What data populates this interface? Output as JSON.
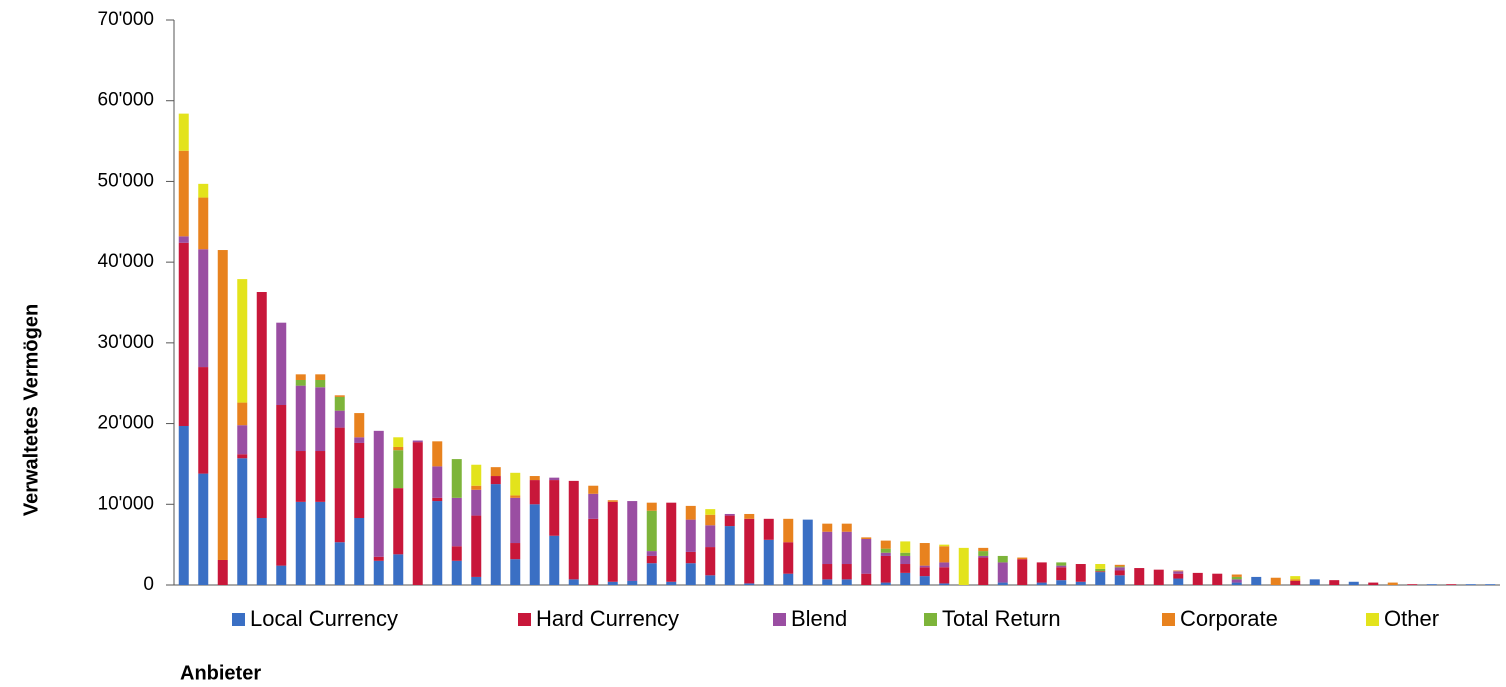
{
  "chart_data": {
    "type": "stacked_bar",
    "y_label": "Verwaltetes Vermögen",
    "x_label": "Anbieter",
    "categories": [
      null,
      null,
      null,
      null,
      null,
      null,
      null,
      null,
      null,
      null,
      null,
      null,
      null,
      null,
      null,
      null,
      null,
      null,
      null,
      null,
      null,
      null,
      null,
      null,
      null,
      null,
      null,
      null,
      null,
      null,
      null,
      null,
      null,
      null,
      null,
      null,
      null,
      null,
      null,
      null,
      null,
      null,
      null,
      null,
      null,
      null,
      null,
      null,
      null,
      null,
      null,
      null,
      null,
      null,
      null,
      null,
      null,
      null,
      null,
      null,
      null,
      null,
      null,
      null,
      null,
      null,
      null,
      null
    ],
    "ylim": [
      0,
      70000
    ],
    "yticks": [
      {
        "value": 0,
        "label": "0"
      },
      {
        "value": 10000,
        "label": "10'000"
      },
      {
        "value": 20000,
        "label": "20'000"
      },
      {
        "value": 30000,
        "label": "30'000"
      },
      {
        "value": 40000,
        "label": "40'000"
      },
      {
        "value": 50000,
        "label": "50'000"
      },
      {
        "value": 60000,
        "label": "60'000"
      },
      {
        "value": 70000,
        "label": "70'000"
      }
    ],
    "legend_position": "bottom",
    "series": [
      {
        "name": "Local Currency",
        "color": "#3a6fc4",
        "values": [
          19700,
          13800,
          0,
          15700,
          8300,
          2400,
          10300,
          10300,
          5300,
          8300,
          3000,
          3800,
          0,
          10400,
          3000,
          1000,
          12500,
          3200,
          10000,
          6100,
          700,
          0,
          400,
          500,
          2700,
          400,
          2700,
          1200,
          7300,
          200,
          5600,
          1400,
          8100,
          700,
          700,
          0,
          300,
          1500,
          1100,
          200,
          0,
          0,
          300,
          0,
          300,
          600,
          400,
          1600,
          1200,
          0,
          0,
          800,
          0,
          0,
          300,
          1000,
          0,
          0,
          700,
          0,
          400,
          0,
          0,
          0,
          100,
          0,
          100,
          100
        ]
      },
      {
        "name": "Hard Currency",
        "color": "#c8173a",
        "values": [
          22700,
          13200,
          3100,
          500,
          28000,
          19900,
          6300,
          6300,
          14200,
          9300,
          500,
          8200,
          17700,
          400,
          1800,
          7600,
          1000,
          2000,
          3000,
          6900,
          12200,
          8200,
          9900,
          0,
          900,
          9800,
          1400,
          3500,
          1300,
          8000,
          2600,
          3900,
          0,
          1900,
          1900,
          1400,
          3300,
          1100,
          1100,
          2000,
          0,
          3400,
          0,
          3200,
          2500,
          1600,
          2200,
          100,
          600,
          2100,
          1900,
          600,
          1500,
          1400,
          0,
          0,
          0,
          500,
          0,
          600,
          0,
          300,
          0,
          100,
          0,
          100,
          0,
          0
        ]
      },
      {
        "name": "Blend",
        "color": "#9a4ea2",
        "values": [
          800,
          14600,
          0,
          3600,
          0,
          10200,
          8100,
          7900,
          2100,
          700,
          15600,
          0,
          200,
          3900,
          6000,
          3200,
          0,
          5600,
          0,
          300,
          0,
          3100,
          0,
          9900,
          600,
          0,
          4000,
          2700,
          200,
          0,
          0,
          0,
          0,
          4000,
          4000,
          4300,
          400,
          1000,
          200,
          600,
          0,
          200,
          2500,
          0,
          0,
          200,
          0,
          0,
          400,
          0,
          0,
          300,
          0,
          0,
          400,
          0,
          0,
          0,
          0,
          0,
          0,
          0,
          0,
          0,
          0,
          0,
          0,
          0
        ]
      },
      {
        "name": "Total Return",
        "color": "#7db43a",
        "values": [
          0,
          0,
          0,
          0,
          0,
          0,
          700,
          900,
          1700,
          0,
          0,
          4700,
          0,
          0,
          4800,
          0,
          0,
          0,
          0,
          0,
          0,
          0,
          0,
          0,
          5000,
          0,
          0,
          0,
          0,
          0,
          0,
          0,
          0,
          0,
          0,
          0,
          500,
          400,
          0,
          0,
          0,
          600,
          800,
          0,
          0,
          400,
          0,
          300,
          100,
          0,
          0,
          0,
          0,
          0,
          300,
          0,
          0,
          0,
          0,
          0,
          0,
          0,
          0,
          0,
          0,
          0,
          0,
          0
        ]
      },
      {
        "name": "Corporate",
        "color": "#e8821e",
        "values": [
          10600,
          6400,
          38400,
          2800,
          0,
          0,
          700,
          700,
          200,
          3000,
          0,
          400,
          0,
          3100,
          0,
          500,
          1100,
          300,
          500,
          0,
          0,
          1000,
          200,
          0,
          1000,
          0,
          1700,
          1300,
          0,
          600,
          0,
          2900,
          0,
          1000,
          1000,
          200,
          1000,
          0,
          2800,
          2000,
          0,
          400,
          0,
          200,
          0,
          0,
          0,
          0,
          200,
          0,
          0,
          100,
          0,
          0,
          300,
          0,
          900,
          200,
          0,
          0,
          0,
          0,
          300,
          0,
          0,
          0,
          0,
          0
        ]
      },
      {
        "name": "Other",
        "color": "#e3e31c",
        "values": [
          4600,
          1700,
          0,
          15300,
          0,
          0,
          0,
          0,
          0,
          0,
          0,
          1200,
          0,
          0,
          0,
          2600,
          0,
          2800,
          0,
          0,
          0,
          0,
          0,
          0,
          0,
          0,
          0,
          700,
          0,
          0,
          0,
          0,
          0,
          0,
          0,
          0,
          0,
          1400,
          0,
          200,
          4600,
          0,
          0,
          0,
          0,
          0,
          0,
          600,
          0,
          0,
          0,
          0,
          0,
          0,
          0,
          0,
          0,
          400,
          0,
          0,
          0,
          0,
          0,
          0,
          0,
          0,
          0,
          0
        ]
      }
    ]
  }
}
